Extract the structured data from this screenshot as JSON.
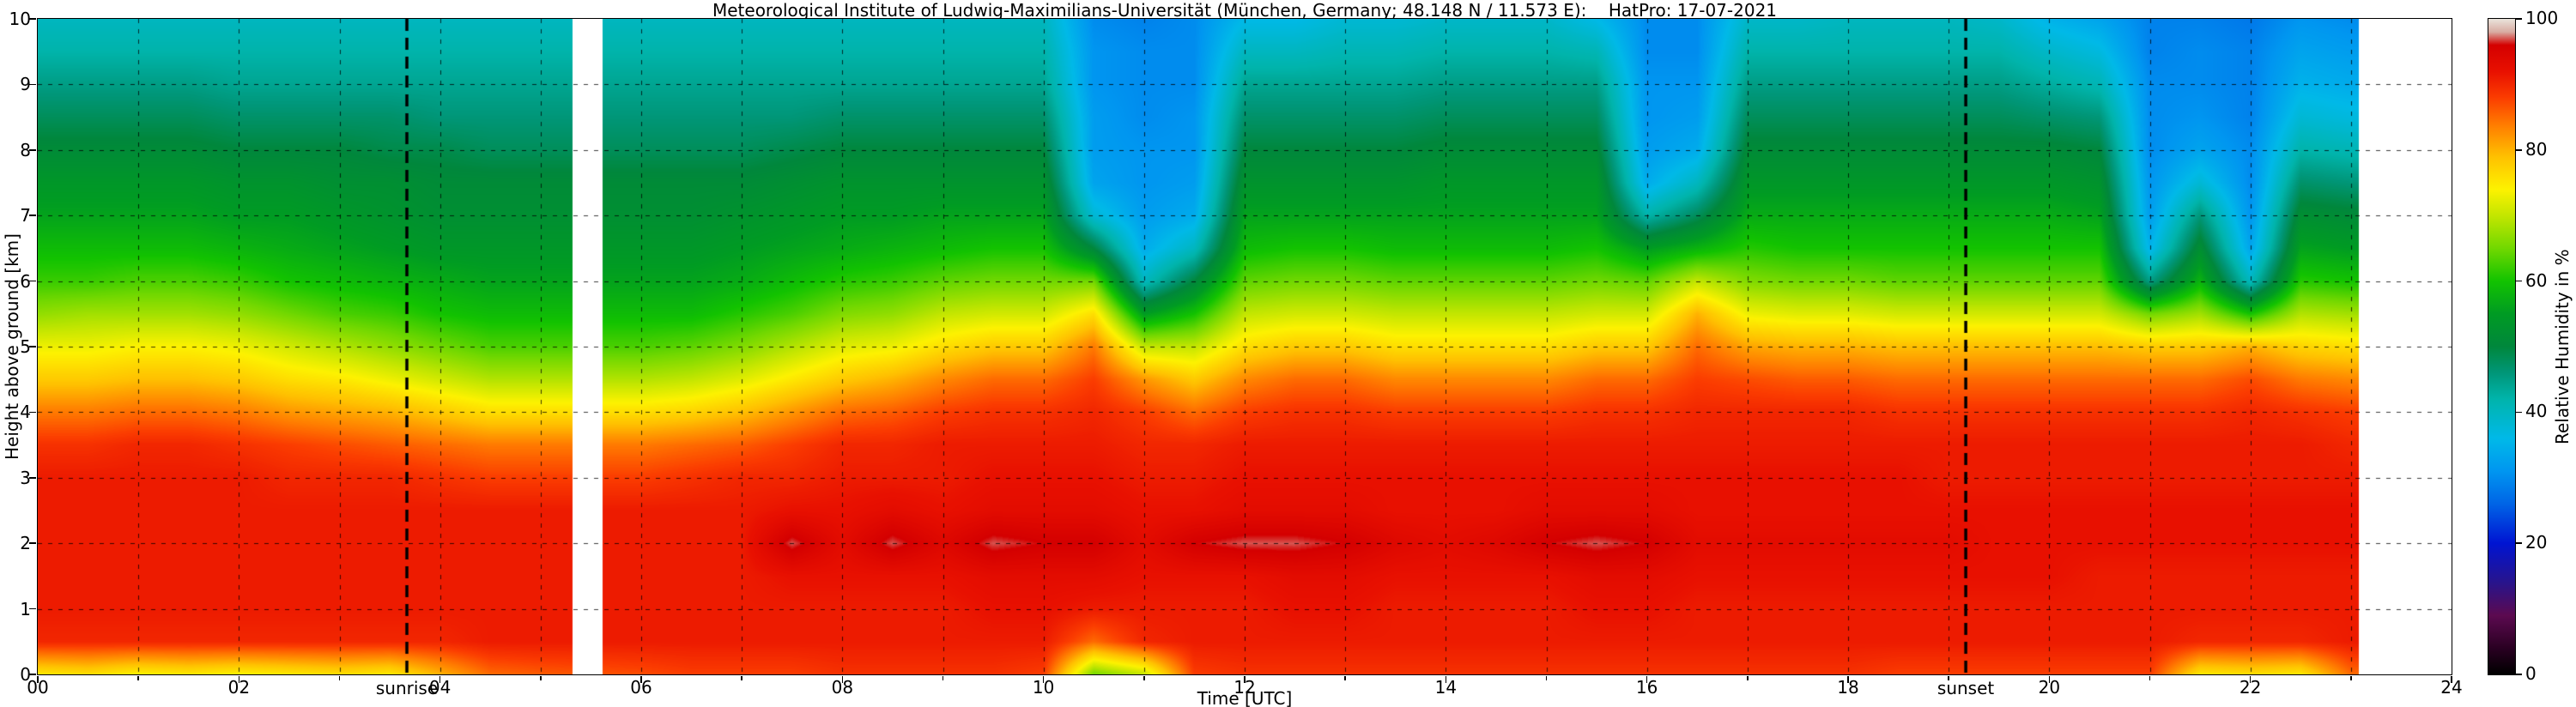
{
  "chart_data": {
    "type": "heatmap",
    "title": "Meteorological Institute of Ludwig-Maximilians-Universität (München, Germany; 48.148 N / 11.573 E):    HatPro: 17-07-2021",
    "xlabel": "Time [UTC]",
    "ylabel": "Height above ground [km]",
    "cbar_label": "Relative Humidity in %",
    "xlim": [
      0,
      24
    ],
    "ylim": [
      0,
      10
    ],
    "clim": [
      0,
      100
    ],
    "x_ticks": [
      "00",
      "02",
      "04",
      "06",
      "08",
      "10",
      "12",
      "14",
      "16",
      "18",
      "20",
      "22",
      "24"
    ],
    "y_ticks": [
      "0",
      "1",
      "2",
      "3",
      "4",
      "5",
      "6",
      "7",
      "8",
      "9",
      "10"
    ],
    "cbar_ticks": [
      "0",
      "20",
      "40",
      "60",
      "80",
      "100"
    ],
    "grid": true,
    "data_start": 0.0,
    "data_end": 23.08,
    "gaps": [
      [
        5.32,
        5.62
      ]
    ],
    "annotations": [
      {
        "label": "sunrise",
        "time": 3.67
      },
      {
        "label": "sunset",
        "time": 19.17
      }
    ],
    "colormap": [
      {
        "v": 0,
        "c": "#000000"
      },
      {
        "v": 4,
        "c": "#2a0022"
      },
      {
        "v": 9,
        "c": "#5c0a50"
      },
      {
        "v": 14,
        "c": "#28148c"
      },
      {
        "v": 20,
        "c": "#0014d2"
      },
      {
        "v": 26,
        "c": "#0064e6"
      },
      {
        "v": 31,
        "c": "#0096f0"
      },
      {
        "v": 36,
        "c": "#00b9e8"
      },
      {
        "v": 42,
        "c": "#00b4ab"
      },
      {
        "v": 46,
        "c": "#009678"
      },
      {
        "v": 50,
        "c": "#00873c"
      },
      {
        "v": 55,
        "c": "#009b23"
      },
      {
        "v": 60,
        "c": "#12c300"
      },
      {
        "v": 65,
        "c": "#71d800"
      },
      {
        "v": 70,
        "c": "#c3e600"
      },
      {
        "v": 74,
        "c": "#fdf200"
      },
      {
        "v": 79,
        "c": "#ffc000"
      },
      {
        "v": 84,
        "c": "#ff7a00"
      },
      {
        "v": 88,
        "c": "#fb3c00"
      },
      {
        "v": 92,
        "c": "#e81000"
      },
      {
        "v": 96,
        "c": "#d40000"
      },
      {
        "v": 98,
        "c": "#d8aca2"
      },
      {
        "v": 100,
        "c": "#eae4dc"
      }
    ],
    "y_km": [
      0,
      0.5,
      1,
      1.5,
      2,
      2.5,
      3,
      3.5,
      4,
      4.5,
      5,
      5.5,
      6,
      6.5,
      7,
      7.5,
      8,
      8.5,
      9,
      9.5,
      10
    ],
    "x_hours": [
      0,
      0.5,
      1,
      1.5,
      2,
      2.5,
      3,
      3.5,
      4,
      4.5,
      5,
      6,
      6.5,
      7,
      7.5,
      8,
      8.5,
      9,
      9.5,
      10,
      10.5,
      11,
      11.5,
      12,
      12.5,
      13,
      13.5,
      14,
      14.5,
      15,
      15.5,
      16,
      16.5,
      17,
      17.5,
      18,
      18.5,
      19,
      19.5,
      20,
      20.5,
      21,
      21.5,
      22,
      22.5,
      23
    ],
    "rh_values": [
      [
        75,
        90,
        91,
        91,
        91,
        91,
        91,
        89,
        84,
        78,
        73,
        67,
        62,
        59,
        56,
        54,
        51,
        48,
        45,
        42,
        40
      ],
      [
        76,
        90,
        91,
        91,
        91,
        91,
        91,
        89,
        84,
        78,
        73,
        68,
        62,
        59,
        56,
        54,
        51,
        48,
        45,
        42,
        40
      ],
      [
        74,
        90,
        91,
        91,
        91,
        91,
        91,
        90,
        85,
        79,
        74,
        68,
        63,
        59,
        56,
        54,
        51,
        48,
        45,
        42,
        40
      ],
      [
        75,
        90,
        91,
        91,
        91,
        91,
        91,
        90,
        85,
        79,
        74,
        68,
        63,
        59,
        56,
        54,
        51,
        48,
        45,
        42,
        40
      ],
      [
        74,
        90,
        91,
        91,
        91,
        91,
        91,
        89,
        84,
        78,
        73,
        67,
        62,
        58,
        55,
        53,
        50,
        47,
        44,
        42,
        40
      ],
      [
        75,
        90,
        91,
        91,
        91,
        91,
        90,
        88,
        82,
        76,
        71,
        65,
        60,
        57,
        55,
        53,
        50,
        47,
        44,
        42,
        40
      ],
      [
        76,
        90,
        91,
        91,
        91,
        91,
        90,
        87,
        81,
        75,
        69,
        63,
        59,
        56,
        54,
        52,
        50,
        47,
        44,
        42,
        40
      ],
      [
        75,
        90,
        91,
        91,
        91,
        91,
        90,
        86,
        80,
        73,
        67,
        62,
        58,
        55,
        53,
        52,
        49,
        47,
        44,
        42,
        40
      ],
      [
        80,
        90,
        91,
        91,
        91,
        91,
        89,
        85,
        78,
        71,
        65,
        60,
        57,
        54,
        52,
        51,
        49,
        46,
        44,
        42,
        40
      ],
      [
        85,
        91,
        91,
        91,
        91,
        91,
        88,
        84,
        76,
        69,
        63,
        59,
        56,
        54,
        52,
        51,
        48,
        46,
        44,
        42,
        40
      ],
      [
        86,
        91,
        91,
        91,
        91,
        91,
        88,
        84,
        76,
        69,
        63,
        59,
        56,
        54,
        52,
        51,
        48,
        46,
        44,
        42,
        40
      ],
      [
        87,
        91,
        91,
        91,
        91,
        91,
        88,
        84,
        76,
        69,
        63,
        59,
        56,
        54,
        52,
        51,
        48,
        46,
        44,
        42,
        40
      ],
      [
        88,
        91,
        91,
        91,
        91,
        91,
        89,
        85,
        77,
        70,
        64,
        59,
        56,
        54,
        52,
        51,
        48,
        46,
        44,
        42,
        40
      ],
      [
        88,
        91,
        91,
        91,
        91,
        91,
        90,
        86,
        79,
        72,
        66,
        61,
        57,
        55,
        53,
        51,
        48,
        46,
        44,
        42,
        40
      ],
      [
        88,
        91,
        91,
        92,
        97,
        92,
        90,
        88,
        82,
        75,
        69,
        63,
        59,
        56,
        54,
        52,
        49,
        46,
        44,
        42,
        40
      ],
      [
        89,
        91,
        91,
        92,
        93,
        92,
        91,
        90,
        85,
        78,
        72,
        66,
        61,
        57,
        55,
        53,
        50,
        47,
        44,
        42,
        40
      ],
      [
        89,
        91,
        91,
        92,
        97,
        93,
        91,
        90,
        86,
        80,
        73,
        67,
        62,
        58,
        55,
        53,
        50,
        47,
        44,
        42,
        40
      ],
      [
        89,
        91,
        91,
        92,
        94,
        92,
        91,
        91,
        88,
        83,
        76,
        70,
        64,
        59,
        56,
        53,
        50,
        47,
        44,
        42,
        40
      ],
      [
        89,
        91,
        92,
        93,
        97,
        93,
        92,
        91,
        89,
        85,
        78,
        71,
        65,
        60,
        56,
        53,
        50,
        47,
        44,
        42,
        40
      ],
      [
        88,
        91,
        92,
        93,
        96,
        93,
        92,
        91,
        89,
        85,
        78,
        71,
        65,
        60,
        56,
        53,
        50,
        47,
        44,
        42,
        40
      ],
      [
        65,
        85,
        91,
        93,
        96,
        93,
        92,
        91,
        90,
        88,
        84,
        76,
        65,
        50,
        38,
        33,
        32,
        32,
        31,
        31,
        30
      ],
      [
        70,
        90,
        91,
        92,
        93,
        92,
        91,
        90,
        88,
        82,
        70,
        55,
        40,
        34,
        32,
        31,
        31,
        30,
        30,
        30,
        29
      ],
      [
        88,
        91,
        91,
        92,
        96,
        92,
        91,
        90,
        85,
        78,
        70,
        60,
        50,
        40,
        34,
        32,
        31,
        31,
        30,
        30,
        30
      ],
      [
        89,
        91,
        91,
        92,
        97,
        93,
        92,
        91,
        88,
        83,
        76,
        70,
        64,
        59,
        56,
        53,
        50,
        47,
        44,
        40,
        36
      ],
      [
        89,
        91,
        92,
        93,
        97,
        93,
        92,
        91,
        89,
        85,
        78,
        71,
        65,
        60,
        56,
        53,
        50,
        47,
        44,
        40,
        36
      ],
      [
        89,
        91,
        92,
        93,
        96,
        93,
        92,
        91,
        89,
        85,
        78,
        71,
        65,
        60,
        56,
        53,
        50,
        47,
        44,
        41,
        38
      ],
      [
        89,
        91,
        91,
        92,
        94,
        92,
        92,
        91,
        88,
        83,
        76,
        70,
        64,
        59,
        56,
        53,
        50,
        47,
        44,
        41,
        38
      ],
      [
        89,
        91,
        91,
        92,
        93,
        92,
        92,
        91,
        88,
        83,
        76,
        70,
        64,
        59,
        56,
        54,
        51,
        48,
        45,
        42,
        39
      ],
      [
        89,
        91,
        91,
        92,
        94,
        92,
        92,
        91,
        88,
        83,
        76,
        70,
        64,
        59,
        56,
        54,
        51,
        48,
        45,
        42,
        39
      ],
      [
        89,
        91,
        91,
        92,
        96,
        93,
        92,
        91,
        88,
        83,
        76,
        70,
        64,
        59,
        56,
        54,
        51,
        48,
        45,
        42,
        39
      ],
      [
        89,
        91,
        92,
        93,
        97,
        93,
        92,
        91,
        89,
        85,
        78,
        71,
        65,
        60,
        56,
        54,
        51,
        48,
        45,
        41,
        36
      ],
      [
        89,
        91,
        92,
        93,
        96,
        93,
        92,
        91,
        89,
        85,
        78,
        71,
        64,
        55,
        42,
        34,
        32,
        31,
        31,
        30,
        30
      ],
      [
        89,
        91,
        91,
        92,
        93,
        92,
        92,
        91,
        90,
        88,
        85,
        80,
        70,
        58,
        48,
        40,
        34,
        32,
        31,
        30,
        30
      ],
      [
        89,
        91,
        91,
        92,
        93,
        92,
        92,
        91,
        90,
        87,
        81,
        73,
        66,
        61,
        57,
        54,
        51,
        48,
        45,
        42,
        39
      ],
      [
        89,
        91,
        91,
        92,
        93,
        92,
        92,
        91,
        90,
        86,
        80,
        72,
        65,
        60,
        57,
        54,
        51,
        48,
        45,
        42,
        39
      ],
      [
        89,
        91,
        91,
        92,
        93,
        92,
        92,
        91,
        90,
        86,
        80,
        72,
        65,
        60,
        57,
        54,
        51,
        48,
        45,
        42,
        40
      ],
      [
        88,
        91,
        91,
        92,
        93,
        92,
        92,
        91,
        89,
        85,
        79,
        71,
        64,
        60,
        57,
        54,
        51,
        48,
        45,
        42,
        40
      ],
      [
        88,
        91,
        91,
        92,
        93,
        92,
        91,
        91,
        89,
        85,
        79,
        71,
        64,
        60,
        57,
        54,
        51,
        48,
        45,
        42,
        40
      ],
      [
        88,
        91,
        91,
        92,
        92,
        92,
        91,
        91,
        89,
        85,
        79,
        71,
        64,
        60,
        57,
        54,
        51,
        48,
        45,
        42,
        39
      ],
      [
        88,
        91,
        91,
        92,
        92,
        92,
        91,
        91,
        89,
        85,
        79,
        71,
        64,
        60,
        57,
        54,
        51,
        47,
        43,
        39,
        35
      ],
      [
        88,
        91,
        91,
        91,
        92,
        92,
        91,
        91,
        89,
        85,
        79,
        71,
        64,
        60,
        56,
        53,
        50,
        46,
        41,
        37,
        33
      ],
      [
        88,
        91,
        91,
        91,
        92,
        92,
        91,
        91,
        89,
        85,
        78,
        65,
        45,
        35,
        32,
        31,
        30,
        30,
        30,
        29,
        29
      ],
      [
        75,
        90,
        91,
        91,
        92,
        92,
        91,
        91,
        89,
        85,
        78,
        68,
        58,
        52,
        46,
        38,
        33,
        31,
        30,
        30,
        29
      ],
      [
        76,
        90,
        91,
        91,
        92,
        92,
        91,
        91,
        90,
        87,
        80,
        60,
        40,
        33,
        31,
        30,
        30,
        29,
        29,
        29,
        28
      ],
      [
        75,
        90,
        91,
        91,
        92,
        92,
        91,
        91,
        89,
        84,
        77,
        69,
        61,
        56,
        52,
        47,
        42,
        38,
        35,
        33,
        31
      ],
      [
        85,
        91,
        91,
        91,
        92,
        92,
        91,
        90,
        88,
        83,
        76,
        68,
        60,
        55,
        51,
        46,
        41,
        37,
        34,
        32,
        30
      ]
    ]
  }
}
